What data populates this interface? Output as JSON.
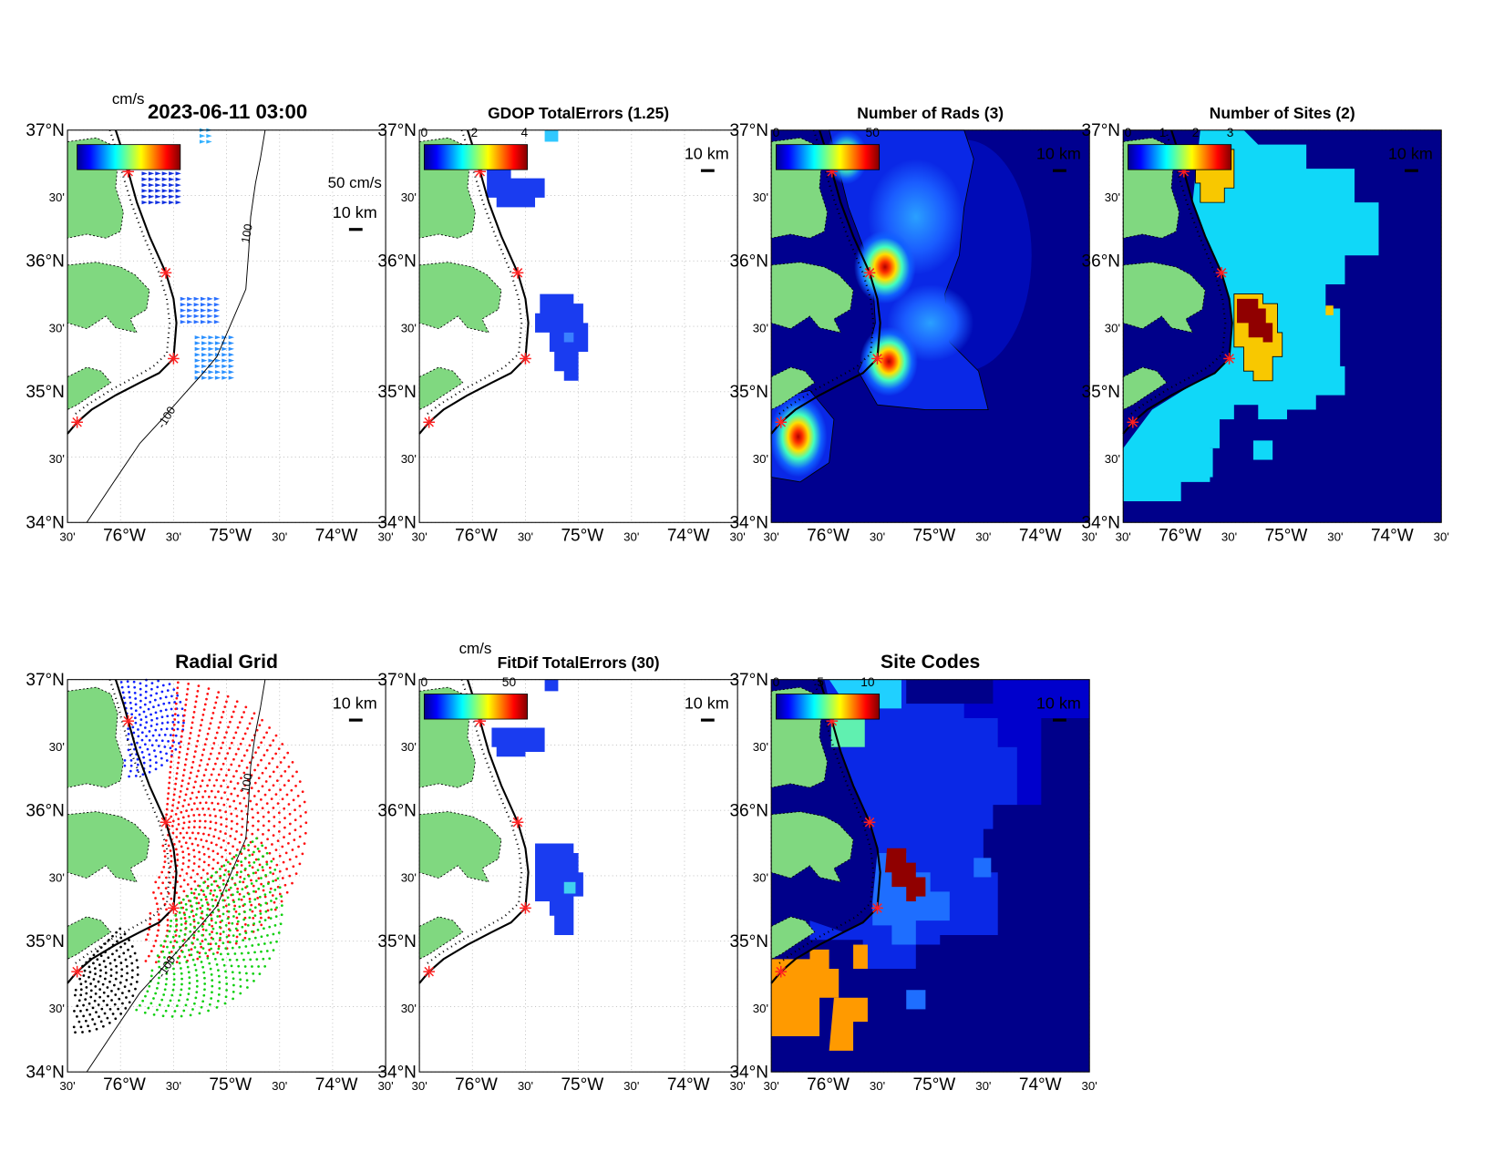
{
  "lat_labels": [
    "37°N",
    "30'",
    "36°N",
    "30'",
    "35°N",
    "30'",
    "34°N"
  ],
  "lon_labels": [
    "30'",
    "76°W",
    "30'",
    "75°W",
    "30'",
    "74°W",
    "30'"
  ],
  "scale_bar": "10 km",
  "contour_labels": [
    "100",
    "-100"
  ],
  "panels": [
    {
      "title": "2023-06-11 03:00",
      "unit": "cm/s",
      "vector_scale": "50 cm/s"
    },
    {
      "title": "GDOP TotalErrors (1.25)",
      "colorbar_ticks": [
        "0",
        "2",
        "4"
      ]
    },
    {
      "title": "Number of Rads (3)",
      "colorbar_ticks": [
        "0",
        "50"
      ]
    },
    {
      "title": "Number of Sites (2)",
      "colorbar_ticks": [
        "0",
        "1",
        "2",
        "3"
      ]
    },
    {
      "title": "Radial Grid"
    },
    {
      "title": "FitDif TotalErrors (30)",
      "unit": "cm/s",
      "colorbar_ticks": [
        "0",
        "50"
      ]
    },
    {
      "title": "Site Codes",
      "colorbar_ticks": [
        "0",
        "5",
        "10"
      ]
    }
  ]
}
